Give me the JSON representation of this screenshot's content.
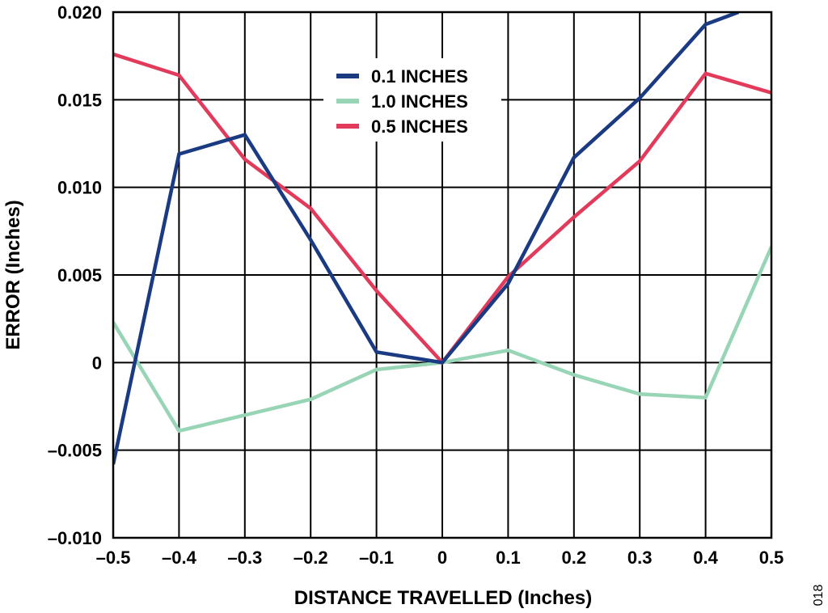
{
  "figure_id": "018",
  "chart_data": {
    "type": "line",
    "title": "",
    "xlabel": "DISTANCE TRAVELLED (Inches)",
    "ylabel": "ERROR (Inches)",
    "xlim": [
      -0.5,
      0.5
    ],
    "ylim": [
      -0.01,
      0.02
    ],
    "x_ticks": [
      -0.5,
      -0.4,
      -0.3,
      -0.2,
      -0.1,
      0,
      0.1,
      0.2,
      0.3,
      0.4,
      0.5
    ],
    "x_tick_labels": [
      "–0.5",
      "–0.4",
      "–0.3",
      "–0.2",
      "–0.1",
      "0",
      "0.1",
      "0.2",
      "0.3",
      "0.4",
      "0.5"
    ],
    "y_ticks": [
      -0.01,
      -0.005,
      0,
      0.005,
      0.01,
      0.015,
      0.02
    ],
    "y_tick_labels": [
      "–0.010",
      "–0.005",
      "0",
      "0.005",
      "0.010",
      "0.015",
      "0.020"
    ],
    "grid": true,
    "legend_position": "top-center",
    "series": [
      {
        "name": "0.1 INCHES",
        "color": "#1a3a82",
        "x": [
          -0.5,
          -0.4,
          -0.3,
          -0.2,
          -0.1,
          0,
          0.1,
          0.2,
          0.3,
          0.4,
          0.45
        ],
        "y": [
          -0.0058,
          0.0119,
          0.013,
          0.007,
          0.0006,
          0.0,
          0.0045,
          0.0117,
          0.0151,
          0.0193,
          0.02
        ]
      },
      {
        "name": "1.0 INCHES",
        "color": "#98d4b6",
        "x": [
          -0.5,
          -0.4,
          -0.3,
          -0.2,
          -0.1,
          0,
          0.1,
          0.2,
          0.3,
          0.4,
          0.5
        ],
        "y": [
          0.0023,
          -0.0039,
          -0.003,
          -0.0021,
          -0.0004,
          0.0,
          0.0007,
          -0.0007,
          -0.0018,
          -0.002,
          0.0066
        ]
      },
      {
        "name": "0.5 INCHES",
        "color": "#e23a5a",
        "x": [
          -0.5,
          -0.4,
          -0.3,
          -0.2,
          -0.1,
          0,
          0.1,
          0.2,
          0.3,
          0.4,
          0.5
        ],
        "y": [
          0.0176,
          0.0164,
          0.0116,
          0.0088,
          0.0041,
          0.0,
          0.0049,
          0.0083,
          0.0115,
          0.0165,
          0.0154
        ]
      }
    ]
  }
}
